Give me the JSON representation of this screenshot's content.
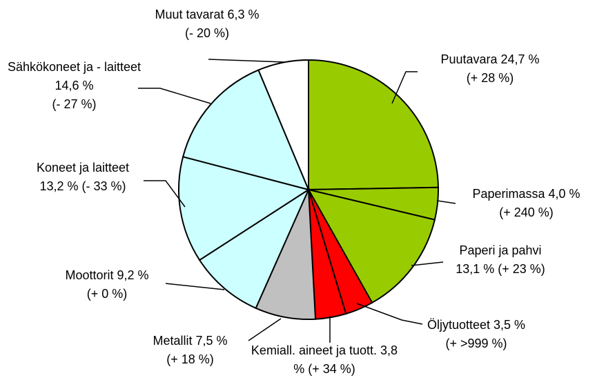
{
  "chart_data": {
    "type": "pie",
    "categories": [
      "Puutavara",
      "Paperimassa",
      "Paperi ja pahvi",
      "Öljytuotteet",
      "Kemiall. aineet ja tuott.",
      "Metallit",
      "Moottorit",
      "Koneet ja laitteet",
      "Sähkökoneet ja - laitteet",
      "Muut tavarat"
    ],
    "values": [
      24.7,
      4.0,
      13.1,
      3.5,
      3.8,
      7.5,
      9.2,
      13.2,
      14.6,
      6.3
    ],
    "value_labels": [
      "24,7 %",
      "4,0 %",
      "13,1 %",
      "3,5 %",
      "3,8 %",
      "7,5 %",
      "9,2 %",
      "13,2 %",
      "14,6 %",
      "6,3 %"
    ],
    "changes": [
      "(+ 28 %)",
      "(+ 240 %)",
      "(+ 23 %)",
      "(+ >999 %)",
      "(+ 34 %)",
      "(+ 18 %)",
      "(+ 0 %)",
      "(- 33 %)",
      "(- 27 %)",
      "(- 20 %)"
    ],
    "colors": [
      "#99cc00",
      "#99cc00",
      "#99cc00",
      "#ff0000",
      "#ff0000",
      "#c0c0c0",
      "#ccffff",
      "#ccffff",
      "#ccffff",
      "#ffffff"
    ]
  }
}
